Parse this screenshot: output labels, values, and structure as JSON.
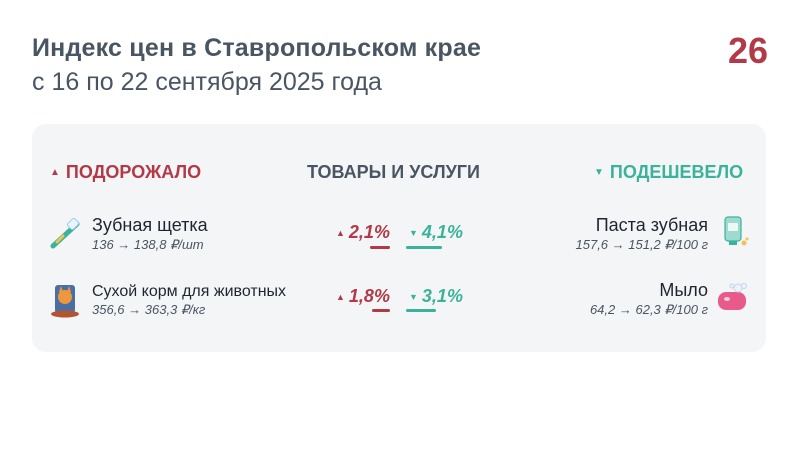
{
  "header": {
    "title": "Индекс цен в Ставропольском крае",
    "subtitle": "с 16 по 22 сентября 2025 года",
    "logo_text": "26"
  },
  "columns": {
    "up_label": "ПОДОРОЖАЛО",
    "middle_label": "ТОВАРЫ И УСЛУГИ",
    "down_label": "ПОДЕШЕВЕЛО"
  },
  "rows": [
    {
      "up_item": {
        "name": "Зубная щетка",
        "price": "136 → 138,8 ₽/шт",
        "icon": "toothbrush-icon"
      },
      "up_pct": "2,1%",
      "down_pct": "4,1%",
      "down_item": {
        "name": "Паста зубная",
        "price": "157,6 → 151,2 ₽/100 г",
        "icon": "toothpaste-icon"
      }
    },
    {
      "up_item": {
        "name": "Сухой корм для животных",
        "price": "356,6 → 363,3 ₽/кг",
        "icon": "pet-food-icon"
      },
      "up_pct": "1,8%",
      "down_pct": "3,1%",
      "down_item": {
        "name": "Мыло",
        "price": "64,2 → 62,3 ₽/100 г",
        "icon": "soap-icon"
      }
    }
  ],
  "colors": {
    "up": "#b23a48",
    "down": "#3bb39b",
    "text": "#4a5563",
    "card": "#f4f5f7"
  }
}
